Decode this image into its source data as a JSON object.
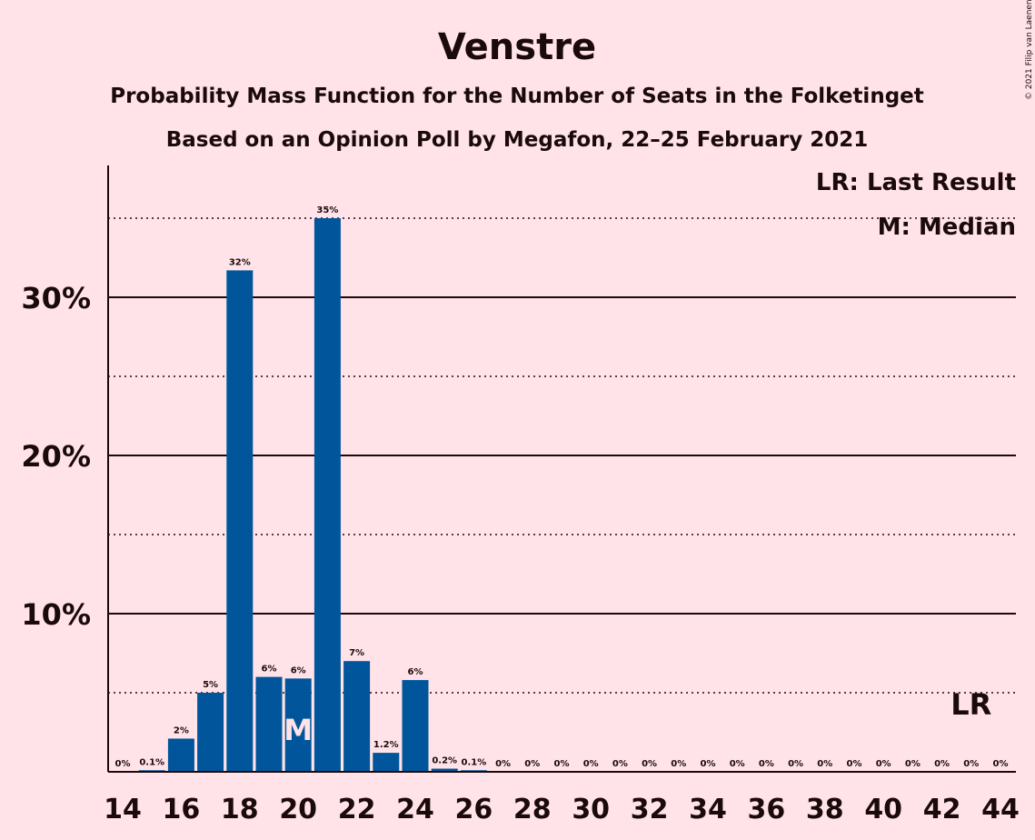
{
  "title": "Venstre",
  "subtitle1": "Probability Mass Function for the Number of Seats in the Folketinget",
  "subtitle2": "Based on an Opinion Poll by Megafon, 22–25 February 2021",
  "copyright": "© 2021 Filip van Laenen",
  "legend": {
    "last_result": "LR: Last Result",
    "median": "M: Median"
  },
  "colors": {
    "background": "#ffe3e8",
    "bar": "#00559b",
    "text": "#1a0a0a"
  },
  "chart_data": {
    "type": "bar",
    "x": [
      14,
      15,
      16,
      17,
      18,
      19,
      20,
      21,
      22,
      23,
      24,
      25,
      26,
      27,
      28,
      29,
      30,
      31,
      32,
      33,
      34,
      35,
      36,
      37,
      38,
      39,
      40,
      41,
      42,
      43,
      44
    ],
    "values": [
      0,
      0.1,
      2.1,
      5,
      31.7,
      6,
      5.9,
      35,
      7,
      1.2,
      5.8,
      0.2,
      0.1,
      0,
      0,
      0,
      0,
      0,
      0,
      0,
      0,
      0,
      0,
      0,
      0,
      0,
      0,
      0,
      0,
      0,
      0
    ],
    "data_labels": [
      "0%",
      "0.1%",
      "2%",
      "5%",
      "32%",
      "6%",
      "6%",
      "35%",
      "7%",
      "1.2%",
      "6%",
      "0.2%",
      "0.1%",
      "0%",
      "0%",
      "0%",
      "0%",
      "0%",
      "0%",
      "0%",
      "0%",
      "0%",
      "0%",
      "0%",
      "0%",
      "0%",
      "0%",
      "0%",
      "0%",
      "0%",
      "0%"
    ],
    "x_tick_labels": [
      "14",
      "16",
      "18",
      "20",
      "22",
      "24",
      "26",
      "28",
      "30",
      "32",
      "34",
      "36",
      "38",
      "40",
      "42",
      "44"
    ],
    "y_ticks": [
      10,
      20,
      30
    ],
    "y_tick_labels": [
      "10%",
      "20%",
      "30%"
    ],
    "y_minor_ticks": [
      5,
      15,
      25,
      35
    ],
    "ylim": [
      0,
      38
    ],
    "median": 20,
    "median_label": "M",
    "last_result": 43,
    "last_result_label": "LR"
  }
}
